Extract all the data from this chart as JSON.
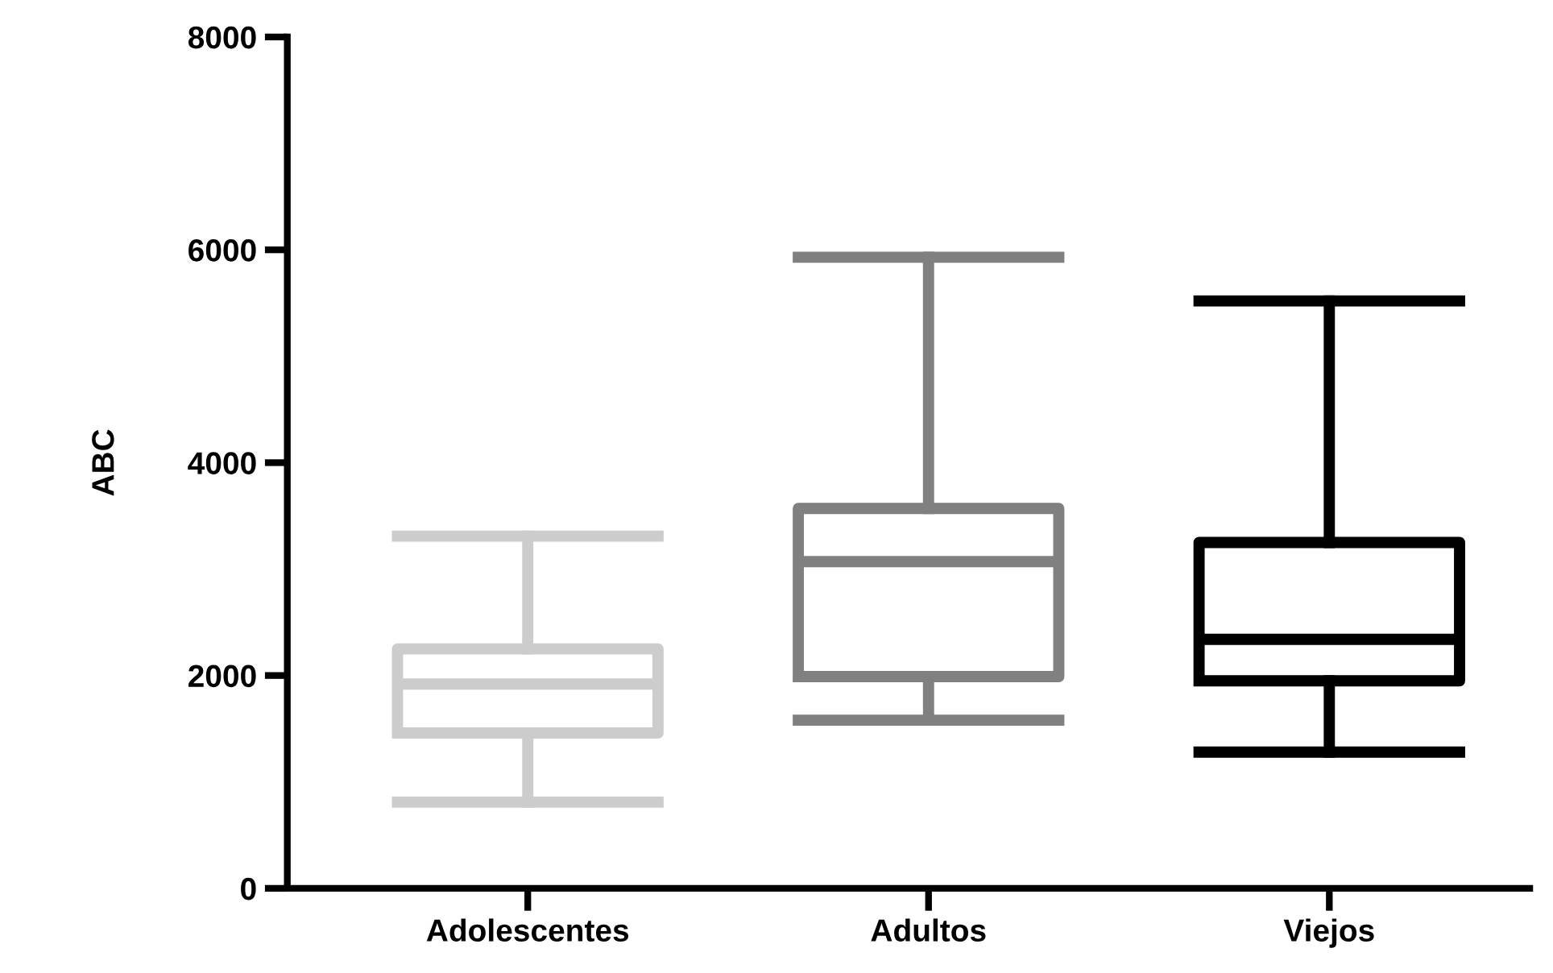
{
  "chart_data": {
    "type": "box",
    "ylabel": "ABC",
    "categories": [
      "Adolescentes",
      "Adultos",
      "Viejos"
    ],
    "boxes": [
      {
        "low": 810,
        "q1": 1460,
        "median": 1920,
        "q3": 2250,
        "high": 3310
      },
      {
        "low": 1580,
        "q1": 1990,
        "median": 3070,
        "q3": 3570,
        "high": 5930
      },
      {
        "low": 1280,
        "q1": 1950,
        "median": 2340,
        "q3": 3250,
        "high": 5520
      }
    ],
    "colors": [
      "#cccccc",
      "#808080",
      "#000000"
    ],
    "ylim": [
      0,
      8000
    ],
    "yticks": [
      0,
      2000,
      4000,
      6000,
      8000
    ],
    "grid": false
  }
}
